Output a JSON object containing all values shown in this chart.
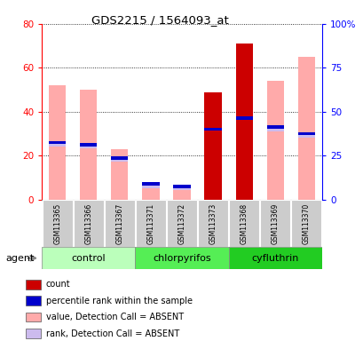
{
  "title": "GDS2215 / 1564093_at",
  "samples": [
    "GSM113365",
    "GSM113366",
    "GSM113367",
    "GSM113371",
    "GSM113372",
    "GSM113373",
    "GSM113368",
    "GSM113369",
    "GSM113370"
  ],
  "groups": [
    {
      "label": "control",
      "start": 0,
      "end": 3,
      "color": "#bbffbb"
    },
    {
      "label": "chlorpyrifos",
      "start": 3,
      "end": 6,
      "color": "#55ee55"
    },
    {
      "label": "cyfluthrin",
      "start": 6,
      "end": 9,
      "color": "#22cc22"
    }
  ],
  "count_values": [
    0,
    0,
    0,
    0,
    0,
    49,
    71,
    0,
    0
  ],
  "percentile_values": [
    26,
    25,
    19,
    7,
    6,
    32,
    37,
    33,
    30
  ],
  "absent_value_bars": [
    52,
    50,
    23,
    6,
    6,
    49,
    0,
    54,
    65
  ],
  "absent_rank_bars": [
    0,
    0,
    0,
    0,
    0,
    0,
    0,
    0,
    0
  ],
  "count_color": "#cc0000",
  "percentile_color": "#0000cc",
  "absent_value_color": "#ffaaaa",
  "absent_rank_color": "#ccbbee",
  "left_ylim": [
    0,
    80
  ],
  "left_yticks": [
    0,
    20,
    40,
    60,
    80
  ],
  "right_yticklabels": [
    "0",
    "25",
    "50",
    "75",
    "100%"
  ],
  "legend_items": [
    {
      "color": "#cc0000",
      "label": "count"
    },
    {
      "color": "#0000cc",
      "label": "percentile rank within the sample"
    },
    {
      "color": "#ffaaaa",
      "label": "value, Detection Call = ABSENT"
    },
    {
      "color": "#ccbbee",
      "label": "rank, Detection Call = ABSENT"
    }
  ],
  "agent_label": "agent"
}
